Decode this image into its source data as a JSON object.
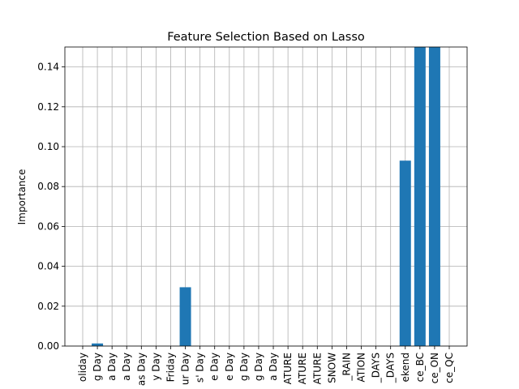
{
  "chart_data": {
    "type": "bar",
    "title": "Feature Selection Based on Lasso",
    "xlabel": "",
    "ylabel": "Importance",
    "ylim": [
      0,
      0.15
    ],
    "yticks": [
      0.0,
      0.02,
      0.04,
      0.06,
      0.08,
      0.1,
      0.12,
      0.14
    ],
    "ytick_labels": [
      "0.00",
      "0.02",
      "0.04",
      "0.06",
      "0.08",
      "0.10",
      "0.12",
      "0.14"
    ],
    "grid": true,
    "bar_color": "#1f77b4",
    "categories": [
      "oliday",
      "g Day",
      "a Day",
      "a Day",
      "as Day",
      "y Day",
      "Friday",
      "ur Day",
      "s' Day",
      "e Day",
      "e Day",
      "g Day",
      "g Day",
      "a Day",
      "ATURE",
      "ATURE",
      "ATURE",
      "SNOW",
      "_RAIN",
      "ATION",
      "_DAYS",
      "_DAYS",
      "ekend",
      "ce_BC",
      "ce_ON",
      "ce_QC"
    ],
    "values": [
      0,
      0.0013,
      0,
      0,
      0,
      0,
      0,
      0.0295,
      0,
      0,
      0,
      0,
      0,
      0,
      0,
      0,
      0,
      0,
      0,
      0,
      0,
      0,
      0.093,
      0.15,
      0.15,
      0
    ]
  }
}
